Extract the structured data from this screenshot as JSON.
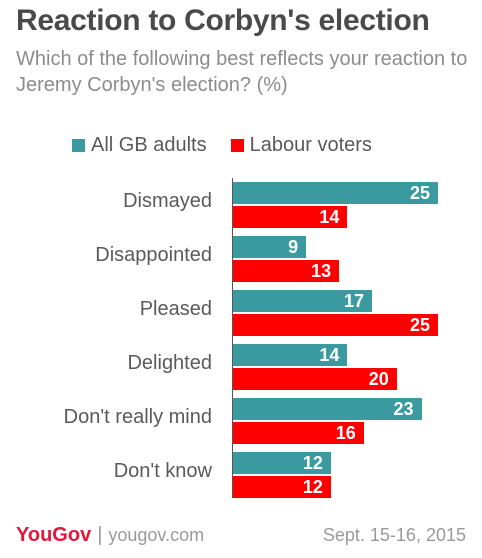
{
  "title": "Reaction to Corbyn's election",
  "subtitle": "Which of the following best reflects your reaction to Jeremy Corbyn's election? (%)",
  "colors": {
    "series1": "#3a9a9f",
    "series2": "#ff0000"
  },
  "chart_data": {
    "type": "bar",
    "orientation": "horizontal",
    "categories": [
      "Dismayed",
      "Disappointed",
      "Pleased",
      "Delighted",
      "Don't really mind",
      "Don't know"
    ],
    "series": [
      {
        "name": "All GB adults",
        "values": [
          25,
          9,
          17,
          14,
          23,
          12
        ]
      },
      {
        "name": "Labour voters",
        "values": [
          14,
          13,
          25,
          20,
          16,
          12
        ]
      }
    ],
    "xlim": [
      0,
      25
    ],
    "legend": "top",
    "grid": false
  },
  "footer": {
    "brand": "YouGov",
    "separator": "|",
    "site": "yougov.com",
    "date": "Sept. 15-16, 2015"
  }
}
